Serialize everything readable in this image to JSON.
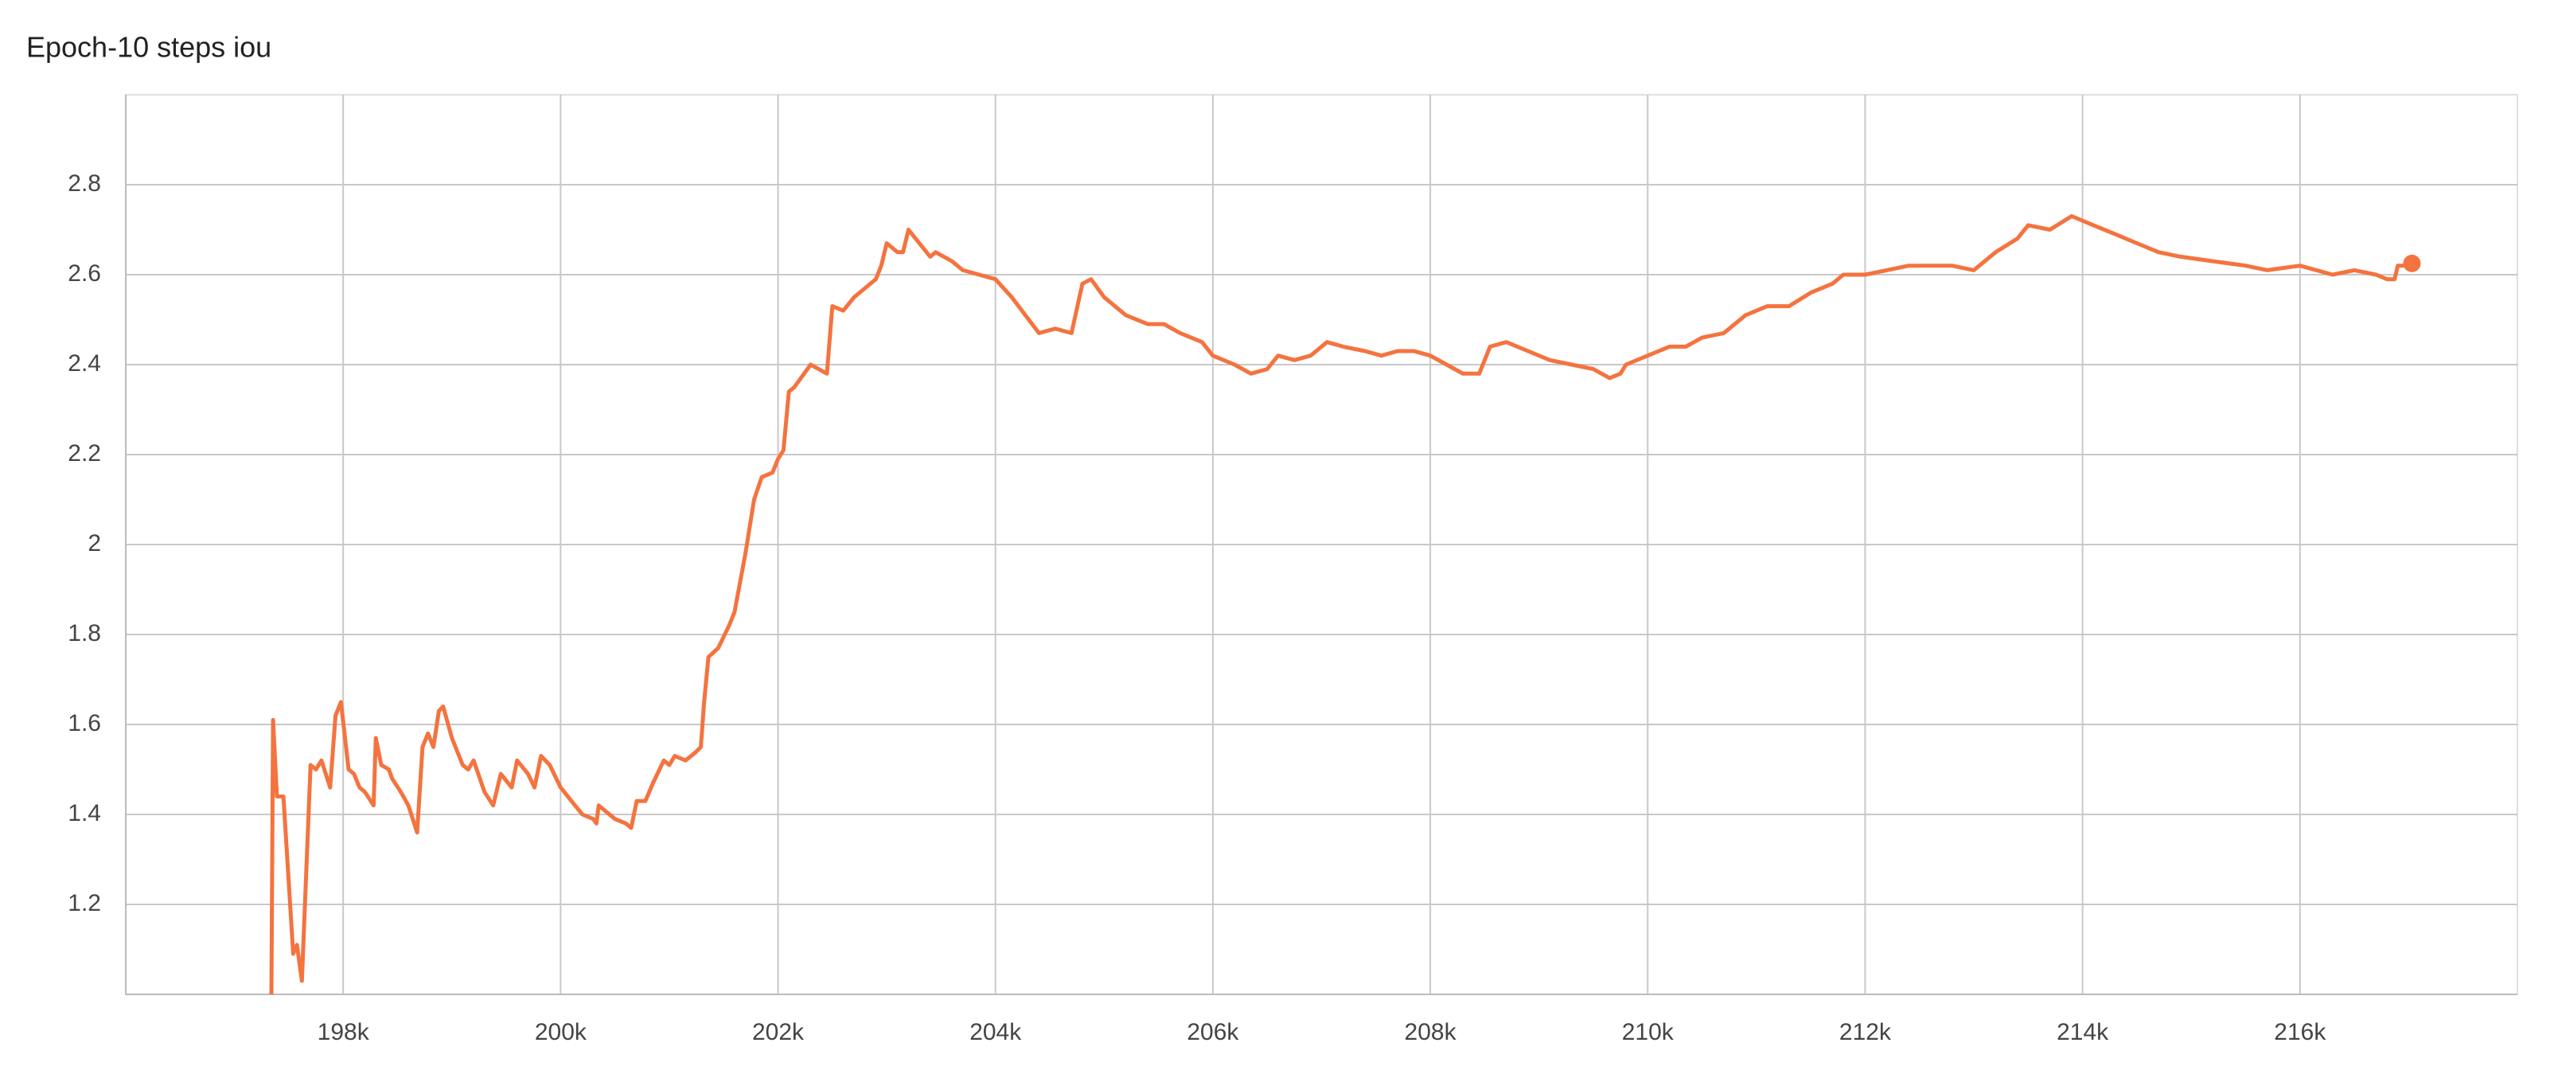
{
  "chart_data": {
    "type": "line",
    "title": "Epoch-10 steps iou",
    "color": "#f4733f",
    "grid": true,
    "marker_last": true,
    "xlim": [
      196000,
      218000
    ],
    "xticks": [
      {
        "value": 198000,
        "label": "198k"
      },
      {
        "value": 200000,
        "label": "200k"
      },
      {
        "value": 202000,
        "label": "202k"
      },
      {
        "value": 204000,
        "label": "204k"
      },
      {
        "value": 206000,
        "label": "206k"
      },
      {
        "value": 208000,
        "label": "208k"
      },
      {
        "value": 210000,
        "label": "210k"
      },
      {
        "value": 212000,
        "label": "212k"
      },
      {
        "value": 214000,
        "label": "214k"
      },
      {
        "value": 216000,
        "label": "216k"
      }
    ],
    "ylim": [
      1.0,
      3.0
    ],
    "yticks": [
      1.2,
      1.4,
      1.6,
      1.8,
      2,
      2.2,
      2.4,
      2.6,
      2.8
    ],
    "x": [
      197340,
      197355,
      197390,
      197450,
      197540,
      197575,
      197620,
      197700,
      197750,
      197800,
      197880,
      197930,
      197980,
      198050,
      198100,
      198150,
      198200,
      198280,
      198300,
      198350,
      198420,
      198450,
      198530,
      198600,
      198680,
      198730,
      198780,
      198830,
      198880,
      198920,
      199000,
      199100,
      199150,
      199200,
      199300,
      199380,
      199450,
      199550,
      199600,
      199700,
      199760,
      199820,
      199900,
      200000,
      200100,
      200200,
      200300,
      200330,
      200350,
      200500,
      200600,
      200650,
      200700,
      200780,
      200850,
      200950,
      201000,
      201050,
      201150,
      201250,
      201290,
      201320,
      201360,
      201450,
      201550,
      201600,
      201700,
      201780,
      201850,
      201950,
      202000,
      202050,
      202100,
      202150,
      202300,
      202450,
      202500,
      202600,
      202700,
      202800,
      202900,
      202950,
      203000,
      203100,
      203150,
      203200,
      203300,
      203400,
      203450,
      203600,
      203700,
      203850,
      204000,
      204150,
      204400,
      204550,
      204700,
      204800,
      204880,
      205000,
      205200,
      205400,
      205550,
      205700,
      205900,
      206000,
      206200,
      206350,
      206500,
      206600,
      206750,
      206900,
      207050,
      207200,
      207400,
      207550,
      207700,
      207850,
      208000,
      208150,
      208300,
      208450,
      208550,
      208700,
      208900,
      209100,
      209300,
      209500,
      209650,
      209750,
      209800,
      210000,
      210200,
      210350,
      210500,
      210700,
      210900,
      211100,
      211300,
      211500,
      211700,
      211800,
      212000,
      212200,
      212400,
      212600,
      212800,
      213000,
      213200,
      213400,
      213500,
      213700,
      213900,
      214100,
      214300,
      214500,
      214700,
      214900,
      215200,
      215500,
      215700,
      216000,
      216300,
      216500,
      216700,
      216800,
      216870,
      216900,
      216950,
      217030
    ],
    "values": [
      1.0,
      1.61,
      1.44,
      1.44,
      1.09,
      1.11,
      1.03,
      1.51,
      1.5,
      1.52,
      1.46,
      1.62,
      1.65,
      1.5,
      1.49,
      1.46,
      1.45,
      1.42,
      1.57,
      1.51,
      1.5,
      1.48,
      1.45,
      1.42,
      1.36,
      1.55,
      1.58,
      1.55,
      1.63,
      1.64,
      1.57,
      1.51,
      1.5,
      1.52,
      1.45,
      1.42,
      1.49,
      1.46,
      1.52,
      1.49,
      1.46,
      1.53,
      1.51,
      1.46,
      1.43,
      1.4,
      1.39,
      1.38,
      1.42,
      1.39,
      1.38,
      1.37,
      1.43,
      1.43,
      1.47,
      1.52,
      1.51,
      1.53,
      1.52,
      1.54,
      1.55,
      1.65,
      1.75,
      1.77,
      1.82,
      1.85,
      1.98,
      2.1,
      2.15,
      2.16,
      2.19,
      2.21,
      2.34,
      2.35,
      2.4,
      2.38,
      2.53,
      2.52,
      2.55,
      2.57,
      2.59,
      2.62,
      2.67,
      2.65,
      2.65,
      2.7,
      2.67,
      2.64,
      2.65,
      2.63,
      2.61,
      2.6,
      2.59,
      2.55,
      2.47,
      2.48,
      2.47,
      2.58,
      2.59,
      2.55,
      2.51,
      2.49,
      2.49,
      2.47,
      2.45,
      2.42,
      2.4,
      2.38,
      2.39,
      2.42,
      2.41,
      2.42,
      2.45,
      2.44,
      2.43,
      2.42,
      2.43,
      2.43,
      2.42,
      2.4,
      2.38,
      2.38,
      2.44,
      2.45,
      2.43,
      2.41,
      2.4,
      2.39,
      2.37,
      2.38,
      2.4,
      2.42,
      2.44,
      2.44,
      2.46,
      2.47,
      2.51,
      2.53,
      2.53,
      2.56,
      2.58,
      2.6,
      2.6,
      2.61,
      2.62,
      2.62,
      2.62,
      2.61,
      2.65,
      2.68,
      2.71,
      2.7,
      2.73,
      2.71,
      2.69,
      2.67,
      2.65,
      2.64,
      2.63,
      2.62,
      2.61,
      2.62,
      2.6,
      2.61,
      2.6,
      2.59,
      2.59,
      2.62,
      2.62,
      2.625
    ]
  }
}
